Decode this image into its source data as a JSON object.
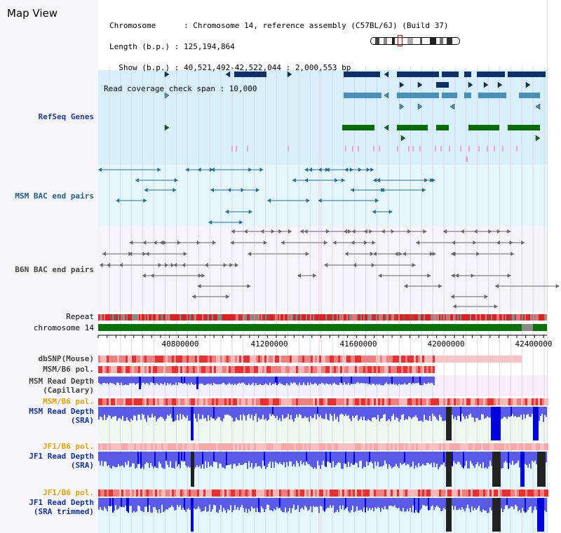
{
  "header": {
    "title": "Map View",
    "info_lines": [
      "Chromosome      : Chromosome 14, reference assembly (C57BL/6J) (Build 37)",
      "Length (b.p.) : 125,194,864",
      "  Show (b.p.) : 40,521,492-42,522,044 : 2,000,553 bp",
      "Read coverage check span : 10,000"
    ]
  },
  "tracks": {
    "refseq": "RefSeq Genes",
    "msm_bac": "MSM BAC end pairs",
    "b6n_bac": "B6N BAC end pairs",
    "repeat": "Repeat",
    "chromosome": "chromosome 14",
    "dbsnp": "dbSNP(Mouse)",
    "msm_pol_1": "MSM/B6 pol.",
    "msm_depth_cap": [
      "MSM Read Depth",
      "(Capillary)"
    ],
    "msm_pol_2": "MSM/B6 pol.",
    "msm_depth_sra": [
      "MSM Read Depth",
      "(SRA)"
    ],
    "jf1_pol_1": "JF1/B6 pol.",
    "jf1_depth_sra": [
      "JF1 Read Depth",
      "(SRA)"
    ],
    "jf1_pol_2": "JF1/B6 pol.",
    "jf1_depth_trim": [
      "JF1 Read Depth",
      "(SRA trimmed)"
    ]
  },
  "axis": {
    "ticks": [
      "40800000",
      "41200000",
      "41600000",
      "42000000",
      "42400000"
    ]
  },
  "colors": {
    "refseq_bg": "#d8f0fb",
    "msm_bac_bg": "#e6f7fb",
    "b6n_bac_bg": "#f4f4fa",
    "gene_navy": "#0f2f6a",
    "gene_teal": "#4a8fb8",
    "gene_green": "#0a6a0a",
    "gene_pink": "#f4a0c8",
    "bac_blue": "#1f6f9a",
    "bac_gray": "#666666",
    "chrom_green": "#0a720a",
    "depth_blue": "#5a5ae8",
    "depth_dark": "#0000dd"
  },
  "icons": {
    "ideogram": "chromosome-ideogram-icon",
    "centromere": "region-marker-icon"
  }
}
